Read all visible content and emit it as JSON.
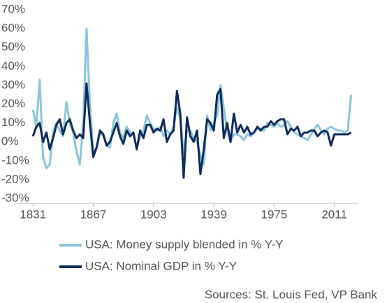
{
  "chart_data": {
    "type": "line",
    "source": "Sources: St. Louis Fed, VP Bank",
    "x": [
      1831,
      1833,
      1835,
      1837,
      1839,
      1841,
      1843,
      1845,
      1847,
      1849,
      1851,
      1853,
      1855,
      1857,
      1859,
      1861,
      1863,
      1865,
      1867,
      1869,
      1871,
      1873,
      1875,
      1877,
      1879,
      1881,
      1883,
      1885,
      1887,
      1889,
      1891,
      1893,
      1895,
      1897,
      1899,
      1901,
      1903,
      1905,
      1907,
      1909,
      1911,
      1913,
      1915,
      1917,
      1919,
      1921,
      1923,
      1925,
      1927,
      1929,
      1931,
      1933,
      1935,
      1937,
      1939,
      1941,
      1943,
      1945,
      1947,
      1949,
      1951,
      1953,
      1955,
      1957,
      1959,
      1961,
      1963,
      1965,
      1967,
      1969,
      1971,
      1973,
      1975,
      1977,
      1979,
      1981,
      1983,
      1985,
      1987,
      1989,
      1991,
      1993,
      1995,
      1997,
      1999,
      2001,
      2003,
      2005,
      2007,
      2009,
      2011,
      2013,
      2015,
      2017,
      2019,
      2021
    ],
    "series": [
      {
        "name": "USA: Money supply blended in % Y-Y",
        "color": "#8ac6dd",
        "width": 3,
        "values": [
          17,
          8,
          33,
          -8,
          -14,
          -12,
          5,
          10,
          6,
          3,
          21,
          10,
          5,
          -5,
          -12,
          10,
          60,
          20,
          -5,
          -3,
          5,
          3,
          -2,
          -3,
          10,
          15,
          5,
          2,
          8,
          5,
          4,
          -3,
          3,
          6,
          14,
          10,
          7,
          6,
          8,
          3,
          6,
          4,
          8,
          18,
          12,
          -6,
          6,
          6,
          2,
          0,
          -7,
          -12,
          14,
          6,
          10,
          14,
          30,
          18,
          6,
          0,
          4,
          4,
          3,
          1,
          4,
          3,
          5,
          7,
          7,
          6,
          10,
          9,
          8,
          10,
          8,
          9,
          11,
          8,
          5,
          4,
          3,
          2,
          1,
          4,
          7,
          9,
          6,
          4,
          7,
          8,
          7,
          6,
          6,
          5,
          6,
          25
        ]
      },
      {
        "name": "USA: Nominal GDP in % Y-Y",
        "color": "#0d2c5c",
        "width": 3,
        "values": [
          3,
          8,
          10,
          0,
          5,
          -4,
          2,
          9,
          12,
          4,
          10,
          12,
          6,
          2,
          4,
          2,
          31,
          10,
          -8,
          -3,
          6,
          4,
          -2,
          0,
          5,
          10,
          3,
          -1,
          6,
          3,
          5,
          -4,
          6,
          2,
          9,
          9,
          5,
          7,
          6,
          12,
          0,
          4,
          6,
          27,
          15,
          -19,
          13,
          3,
          0,
          6,
          -17,
          -4,
          12,
          10,
          6,
          25,
          28,
          2,
          10,
          0,
          15,
          5,
          9,
          5,
          8,
          4,
          5,
          8,
          6,
          8,
          8,
          11,
          9,
          11,
          12,
          12,
          4,
          7,
          6,
          8,
          3,
          5,
          5,
          6,
          6,
          3,
          5,
          6,
          5,
          -2,
          4,
          4,
          4,
          4,
          4,
          5
        ]
      }
    ],
    "xlim": [
      1828,
      2022
    ],
    "xticks": [
      1831,
      1867,
      1903,
      1939,
      1975,
      2011
    ],
    "ylim": [
      -30,
      70
    ],
    "yticks": [
      {
        "value": -30,
        "label": "-30%"
      },
      {
        "value": -20,
        "label": "-20%"
      },
      {
        "value": -10,
        "label": "-10%"
      },
      {
        "value": 0,
        "label": "0%"
      },
      {
        "value": 10,
        "label": "10%"
      },
      {
        "value": 20,
        "label": "20%"
      },
      {
        "value": 30,
        "label": "30%"
      },
      {
        "value": 40,
        "label": "40%"
      },
      {
        "value": 50,
        "label": "50%"
      },
      {
        "value": 60,
        "label": "60%"
      },
      {
        "value": 70,
        "label": "70%"
      }
    ],
    "grid": false
  }
}
